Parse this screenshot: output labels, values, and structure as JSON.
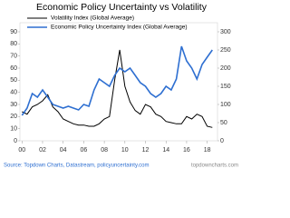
{
  "chart_data": {
    "type": "line",
    "title": "Economic Policy Uncertainty vs Volatility",
    "source": "Source: Topdown Charts, Datastream, policyuncertainty.com",
    "watermark": "topdowncharts.com",
    "x": [
      0,
      0.5,
      1,
      1.5,
      2,
      2.5,
      3,
      3.5,
      4,
      4.5,
      5,
      5.5,
      6,
      6.5,
      7,
      7.5,
      8,
      8.5,
      9,
      9.5,
      10,
      10.5,
      11,
      11.5,
      12,
      12.5,
      13,
      13.5,
      14,
      14.5,
      15,
      15.5,
      16,
      16.5,
      17,
      17.5,
      18,
      18.5
    ],
    "series": [
      {
        "name": "Volatility Index (Global Average)",
        "color": "#000000",
        "values": [
          24,
          22,
          28,
          30,
          33,
          38,
          28,
          24,
          18,
          16,
          14,
          13,
          13,
          12,
          12,
          14,
          18,
          20,
          50,
          75,
          45,
          32,
          25,
          22,
          30,
          28,
          22,
          20,
          16,
          15,
          14,
          14,
          20,
          18,
          22,
          20,
          12,
          11
        ]
      },
      {
        "name": "Economic Policy Uncertainty Index (Global Average)",
        "color": "#2e6fd1",
        "axis": "y2",
        "values": [
          70,
          90,
          130,
          120,
          140,
          120,
          100,
          95,
          90,
          95,
          90,
          85,
          100,
          95,
          140,
          170,
          160,
          150,
          180,
          200,
          190,
          200,
          180,
          160,
          150,
          130,
          120,
          130,
          150,
          140,
          170,
          260,
          220,
          200,
          170,
          210,
          230,
          250
        ]
      }
    ],
    "xlim": [
      -0.2,
      19
    ],
    "xticks": [
      {
        "value": 0,
        "label": "00"
      },
      {
        "value": 2,
        "label": "02"
      },
      {
        "value": 4,
        "label": "04"
      },
      {
        "value": 6,
        "label": "06"
      },
      {
        "value": 8,
        "label": "08"
      },
      10,
      12,
      14,
      16,
      18
    ],
    "ylim": [
      0,
      90
    ],
    "yticks": [
      0,
      10,
      20,
      30,
      40,
      50,
      60,
      70,
      80,
      90
    ],
    "y2lim": [
      0,
      300
    ],
    "y2ticks": [
      0,
      50,
      100,
      150,
      200,
      250,
      300
    ],
    "legend": "upper left"
  }
}
